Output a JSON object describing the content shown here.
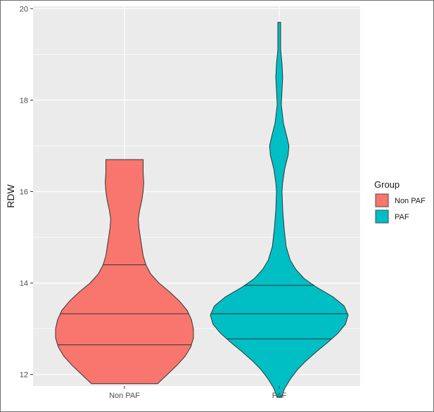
{
  "chart_data": {
    "type": "violin",
    "ylabel": "RDW",
    "xlabel": "",
    "ylim": [
      11.75,
      20.05
    ],
    "yticks": [
      12,
      14,
      16,
      18,
      20
    ],
    "categories": [
      "Non PAF",
      "PAF"
    ],
    "grid": true,
    "legend": {
      "title": "Group",
      "placement": "right",
      "items": [
        {
          "label": "Non PAF",
          "color": "#F8766D"
        },
        {
          "label": "PAF",
          "color": "#00BFC4"
        }
      ]
    },
    "series": [
      {
        "group": "Non PAF",
        "color": "#F8766D",
        "min": 11.8,
        "max": 16.7,
        "quantiles": [
          12.65,
          13.33,
          14.4
        ],
        "density_profile": [
          [
            11.8,
            0.48
          ],
          [
            12.0,
            0.62
          ],
          [
            12.2,
            0.76
          ],
          [
            12.4,
            0.88
          ],
          [
            12.6,
            0.96
          ],
          [
            12.8,
            1.0
          ],
          [
            13.0,
            1.0
          ],
          [
            13.2,
            0.97
          ],
          [
            13.4,
            0.91
          ],
          [
            13.6,
            0.8
          ],
          [
            13.8,
            0.66
          ],
          [
            14.0,
            0.5
          ],
          [
            14.2,
            0.38
          ],
          [
            14.4,
            0.31
          ],
          [
            14.6,
            0.27
          ],
          [
            14.8,
            0.25
          ],
          [
            15.0,
            0.23
          ],
          [
            15.2,
            0.21
          ],
          [
            15.4,
            0.2
          ],
          [
            15.6,
            0.22
          ],
          [
            15.8,
            0.25
          ],
          [
            16.0,
            0.27
          ],
          [
            16.2,
            0.28
          ],
          [
            16.4,
            0.27
          ],
          [
            16.7,
            0.27
          ]
        ]
      },
      {
        "group": "PAF",
        "color": "#00BFC4",
        "min": 11.5,
        "max": 19.7,
        "quantiles": [
          12.78,
          13.33,
          13.95
        ],
        "density_profile": [
          [
            11.5,
            0.03
          ],
          [
            11.7,
            0.08
          ],
          [
            11.9,
            0.16
          ],
          [
            12.1,
            0.26
          ],
          [
            12.3,
            0.39
          ],
          [
            12.5,
            0.54
          ],
          [
            12.7,
            0.7
          ],
          [
            12.9,
            0.85
          ],
          [
            13.1,
            0.96
          ],
          [
            13.3,
            1.0
          ],
          [
            13.5,
            0.94
          ],
          [
            13.7,
            0.78
          ],
          [
            13.9,
            0.55
          ],
          [
            14.1,
            0.36
          ],
          [
            14.3,
            0.24
          ],
          [
            14.5,
            0.16
          ],
          [
            14.8,
            0.1
          ],
          [
            15.2,
            0.07
          ],
          [
            15.6,
            0.05
          ],
          [
            16.0,
            0.04
          ],
          [
            16.2,
            0.05
          ],
          [
            16.5,
            0.08
          ],
          [
            16.8,
            0.13
          ],
          [
            17.0,
            0.14
          ],
          [
            17.2,
            0.11
          ],
          [
            17.5,
            0.06
          ],
          [
            17.9,
            0.03
          ],
          [
            18.2,
            0.04
          ],
          [
            18.5,
            0.05
          ],
          [
            18.8,
            0.04
          ],
          [
            19.1,
            0.02
          ],
          [
            19.4,
            0.02
          ],
          [
            19.7,
            0.02
          ]
        ]
      }
    ]
  }
}
